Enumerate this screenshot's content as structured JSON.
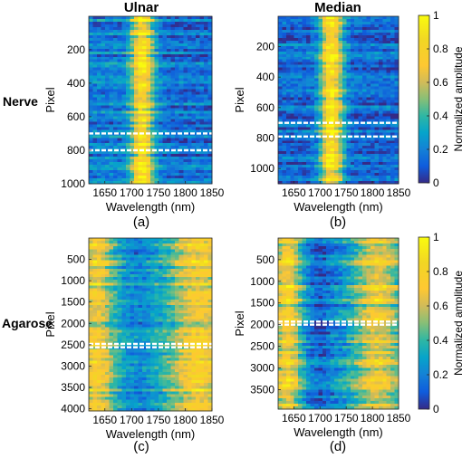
{
  "figure": {
    "column_titles": [
      "Ulnar",
      "Median"
    ],
    "row_labels": [
      "Nerve",
      "Agarose"
    ],
    "panel_letters": [
      "(a)",
      "(b)",
      "(c)",
      "(d)"
    ]
  },
  "colorbar": {
    "label": "Normalized amplitude",
    "ticks": [
      "0",
      "0.2",
      "0.4",
      "0.6",
      "0.8",
      "1"
    ]
  },
  "chart_data": [
    {
      "id": "a",
      "type": "heatmap",
      "sample": "Nerve",
      "nerve": "Ulnar",
      "title": "Ulnar",
      "xlabel": "Wavelength (nm)",
      "ylabel": "Pixel",
      "xlim": [
        1620,
        1850
      ],
      "ylim": [
        1000,
        1
      ],
      "xticks": [
        1650,
        1700,
        1750,
        1800,
        1850
      ],
      "yticks": [
        200,
        400,
        600,
        800,
        1000
      ],
      "clim": [
        0,
        1
      ],
      "white_dashed_lines": [
        700,
        800
      ],
      "peak_band_nm": [
        1700,
        1740
      ],
      "profile": "high amplitude band around 1700-1740 nm, low elsewhere"
    },
    {
      "id": "b",
      "type": "heatmap",
      "sample": "Nerve",
      "nerve": "Median",
      "title": "Median",
      "xlabel": "Wavelength (nm)",
      "ylabel": "Pixel",
      "xlim": [
        1620,
        1850
      ],
      "ylim": [
        1100,
        1
      ],
      "xticks": [
        1650,
        1700,
        1750,
        1800,
        1850
      ],
      "yticks": [
        200,
        400,
        600,
        800,
        1000
      ],
      "clim": [
        0,
        1
      ],
      "white_dashed_lines": [
        700,
        790
      ],
      "peak_band_nm": [
        1700,
        1740
      ],
      "profile": "high amplitude band around 1700-1740 nm, low elsewhere"
    },
    {
      "id": "c",
      "type": "heatmap",
      "sample": "Agarose",
      "nerve": "Ulnar",
      "xlabel": "Wavelength (nm)",
      "ylabel": "Pixel",
      "xlim": [
        1620,
        1850
      ],
      "ylim": [
        4050,
        1
      ],
      "xticks": [
        1650,
        1700,
        1750,
        1800,
        1850
      ],
      "yticks": [
        500,
        1000,
        1500,
        2000,
        2500,
        3000,
        3500,
        4000
      ],
      "clim": [
        0,
        1
      ],
      "white_dashed_lines": [
        2480,
        2560
      ],
      "profile": "high at 1620-1660 nm and 1780-1850 nm, lower near 1700-1720 nm"
    },
    {
      "id": "d",
      "type": "heatmap",
      "sample": "Agarose",
      "nerve": "Median",
      "xlabel": "Wavelength (nm)",
      "ylabel": "Pixel",
      "xlim": [
        1620,
        1850
      ],
      "ylim": [
        3950,
        1
      ],
      "xticks": [
        1650,
        1700,
        1750,
        1800,
        1850
      ],
      "yticks": [
        500,
        1000,
        1500,
        2000,
        2500,
        3000,
        3500
      ],
      "clim": [
        0,
        1
      ],
      "white_dashed_lines": [
        1930,
        2000
      ],
      "profile": "high at 1620-1665 nm and 1780-1850 nm, minimum near 1680-1720 nm"
    }
  ]
}
